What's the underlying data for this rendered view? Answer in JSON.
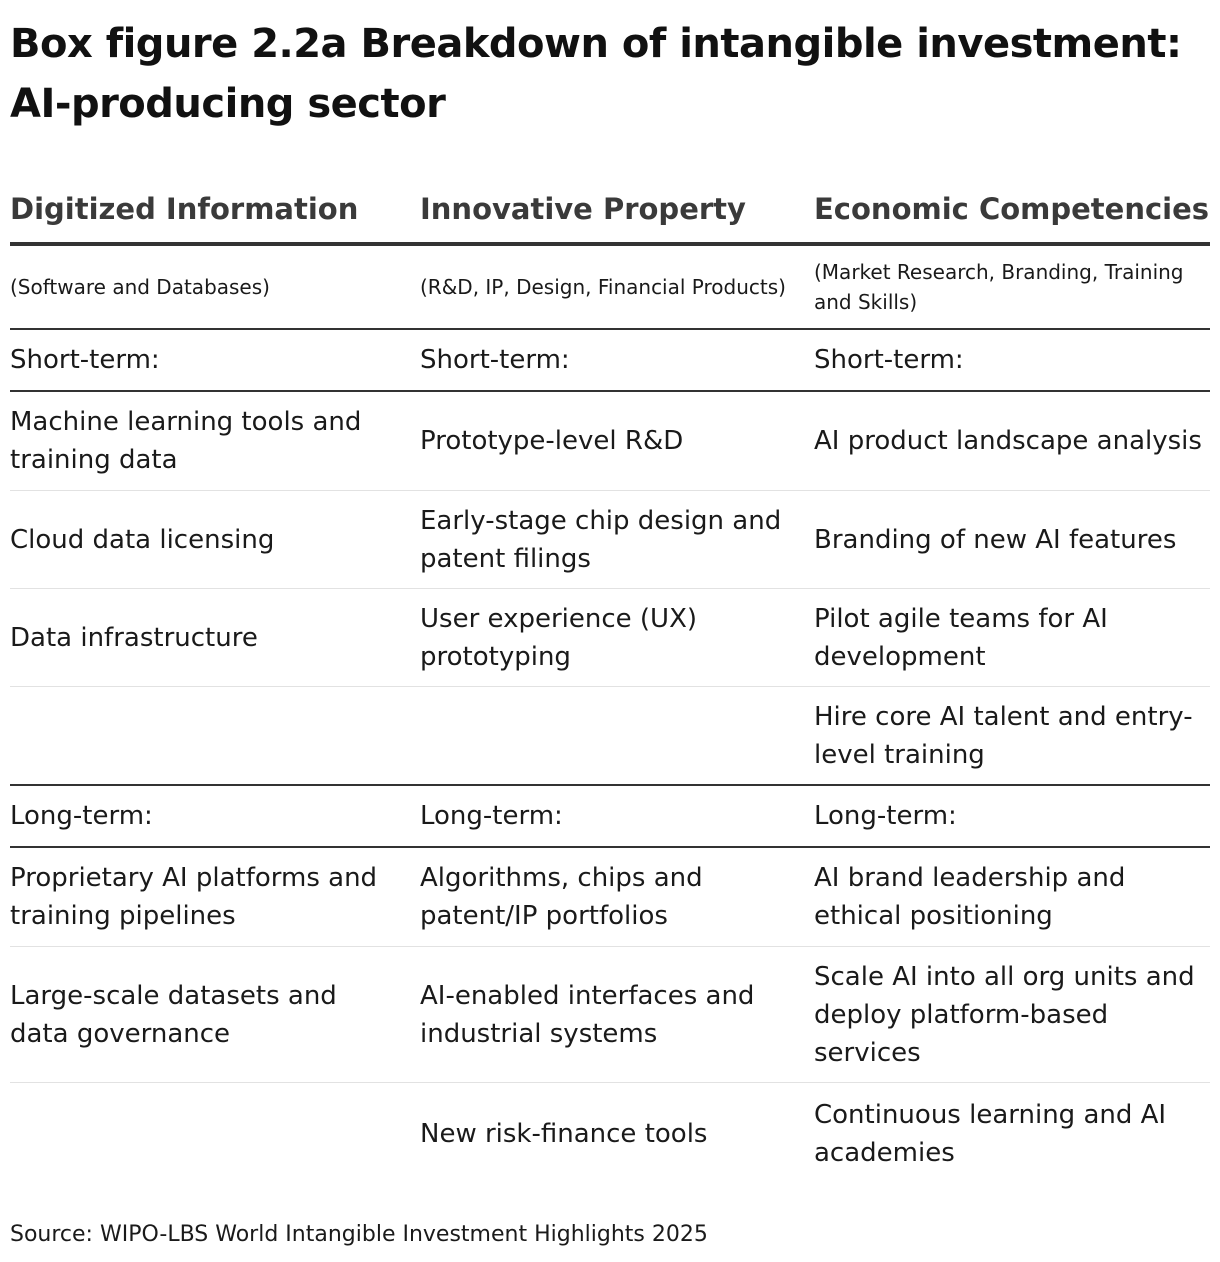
{
  "title": "Box figure 2.2a Breakdown of intangible investment: AI-producing sector",
  "columns": [
    {
      "heading": "Digitized Information",
      "subheading": "(Software and Databases)"
    },
    {
      "heading": "Innovative Property",
      "subheading": "(R&D, IP, Design, Financial Products)"
    },
    {
      "heading": "Economic Competencies",
      "subheading": "(Market Research, Branding, Training and Skills)"
    }
  ],
  "short_term": {
    "labels": [
      "Short-term:",
      "Short-term:",
      "Short-term:"
    ],
    "rows": [
      [
        "Machine learning tools and training data",
        "Prototype-level R&D",
        "AI product landscape analysis"
      ],
      [
        "Cloud data licensing",
        "Early-stage chip design and patent filings",
        "Branding of new AI features"
      ],
      [
        "Data infrastructure",
        "User experience (UX) prototyping",
        "Pilot agile teams for AI development"
      ],
      [
        "",
        "",
        "Hire core AI talent and entry-level training"
      ]
    ]
  },
  "long_term": {
    "labels": [
      "Long-term:",
      "Long-term:",
      "Long-term:"
    ],
    "rows": [
      [
        "Proprietary AI platforms and training pipelines",
        "Algorithms, chips and patent/IP portfolios",
        "AI brand leadership and ethical positioning"
      ],
      [
        "Large-scale datasets and data governance",
        "AI-enabled interfaces and industrial systems",
        "Scale AI into all org units and deploy platform-based services"
      ],
      [
        "",
        "New risk-finance tools",
        "Continuous learning and AI academies"
      ]
    ]
  },
  "source": "Source: WIPO-LBS World Intangible Investment Highlights 2025"
}
